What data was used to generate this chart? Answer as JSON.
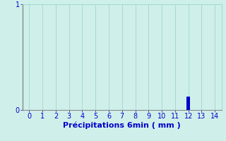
{
  "xlabel": "Précipitations 6min ( mm )",
  "background_color": "#cff0ea",
  "bar_x": [
    12
  ],
  "bar_heights": [
    0.13
  ],
  "bar_color": "#0000cc",
  "bar_width": 0.25,
  "xlim": [
    -0.5,
    14.5
  ],
  "ylim": [
    0,
    1.0
  ],
  "xticks": [
    0,
    1,
    2,
    3,
    4,
    5,
    6,
    7,
    8,
    9,
    10,
    11,
    12,
    13,
    14
  ],
  "yticks": [
    0,
    1
  ],
  "grid_color": "#a8d8d0",
  "axis_color": "#0000cc",
  "tick_color": "#0000cc",
  "spine_color": "#888888",
  "label_fontsize": 8,
  "tick_fontsize": 7
}
